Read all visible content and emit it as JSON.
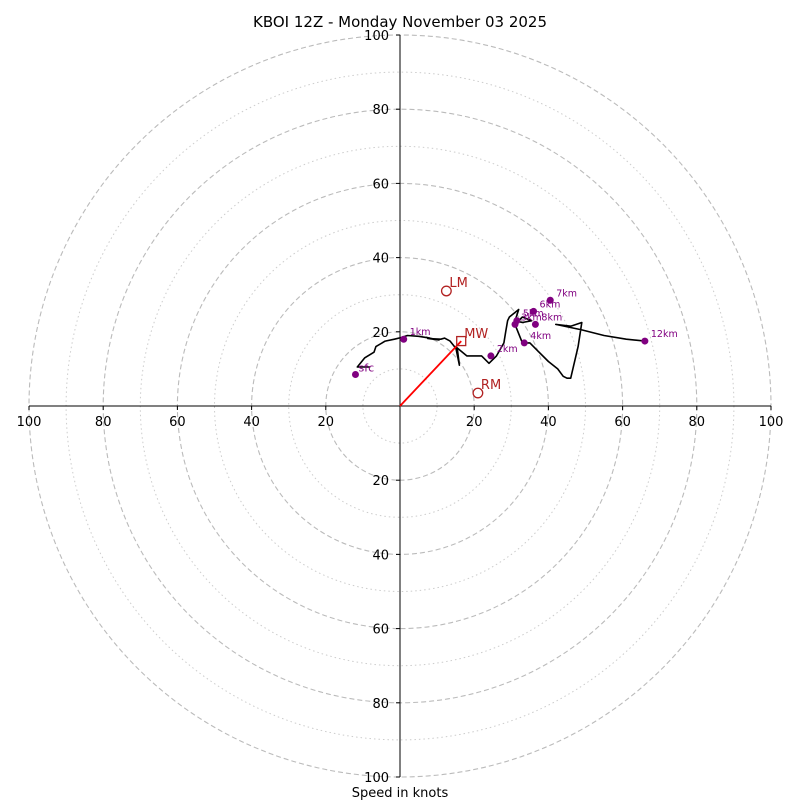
{
  "chart_data": {
    "type": "hodograph",
    "title": "KBOI 12Z - Monday November 03 2025",
    "xlabel": "Speed in knots",
    "range": 100,
    "rings_major": [
      20,
      40,
      60,
      80,
      100
    ],
    "rings_minor": [
      10,
      30,
      50,
      70,
      90
    ],
    "tick_values": [
      20,
      40,
      60,
      80,
      100
    ],
    "trace": [
      [
        -8,
        10.5
      ],
      [
        -11.5,
        10.5
      ],
      [
        -9.5,
        13
      ],
      [
        -7,
        14.5
      ],
      [
        -6.5,
        16
      ],
      [
        -4,
        17.5
      ],
      [
        -1.5,
        18
      ],
      [
        0.5,
        18.5
      ],
      [
        2,
        19
      ],
      [
        5,
        18.8
      ],
      [
        8,
        18.3
      ],
      [
        10.5,
        17.8
      ],
      [
        7.5,
        18.2
      ],
      [
        11,
        18
      ],
      [
        12,
        18.3
      ],
      [
        13.5,
        17.5
      ],
      [
        15.5,
        15
      ],
      [
        16,
        11
      ],
      [
        15,
        16
      ],
      [
        18,
        13.5
      ],
      [
        22,
        13.5
      ],
      [
        24,
        11.5
      ],
      [
        26,
        13.5
      ],
      [
        28,
        17
      ],
      [
        28.5,
        20
      ],
      [
        29,
        23
      ],
      [
        29.5,
        24
      ],
      [
        32,
        26
      ],
      [
        31.5,
        24.5
      ],
      [
        31,
        23
      ],
      [
        33,
        22.5
      ],
      [
        35.5,
        23
      ],
      [
        33,
        24
      ],
      [
        31,
        22
      ],
      [
        33,
        17
      ],
      [
        35,
        17
      ],
      [
        37,
        15
      ],
      [
        40,
        12
      ],
      [
        42.5,
        10
      ],
      [
        44,
        8
      ],
      [
        45,
        7.5
      ],
      [
        46,
        7.5
      ],
      [
        48,
        16
      ],
      [
        49,
        22.5
      ],
      [
        46,
        21.5
      ],
      [
        42,
        22
      ],
      [
        49,
        20.5
      ],
      [
        55,
        19
      ],
      [
        61,
        18
      ],
      [
        66,
        17.5
      ]
    ],
    "height_markers": [
      {
        "label": "sfc",
        "u": -12,
        "v": 8.5
      },
      {
        "label": "1km",
        "u": 1,
        "v": 18
      },
      {
        "label": "2km",
        "u": 24.5,
        "v": 13.5
      },
      {
        "label": "3km",
        "u": 31,
        "v": 22
      },
      {
        "label": "4km",
        "u": 33.5,
        "v": 17
      },
      {
        "label": "5km",
        "u": 31.5,
        "v": 23
      },
      {
        "label": "6km",
        "u": 36,
        "v": 25.5
      },
      {
        "label": "7km",
        "u": 40.5,
        "v": 28.5
      },
      {
        "label": "8km",
        "u": 36.5,
        "v": 22
      },
      {
        "label": "12km",
        "u": 66,
        "v": 17.5
      }
    ],
    "storm_motion": {
      "mean_wind": {
        "label": "MW",
        "u": 16.5,
        "v": 17.5
      },
      "left_mover": {
        "label": "LM",
        "u": 12.5,
        "v": 31
      },
      "right_mover": {
        "label": "RM",
        "u": 21,
        "v": 3.5
      }
    },
    "colors": {
      "trace": "#000000",
      "markers": "#800080",
      "storm": "#b22222",
      "vector": "#ff0000",
      "grid": "#bbbbbb"
    }
  }
}
